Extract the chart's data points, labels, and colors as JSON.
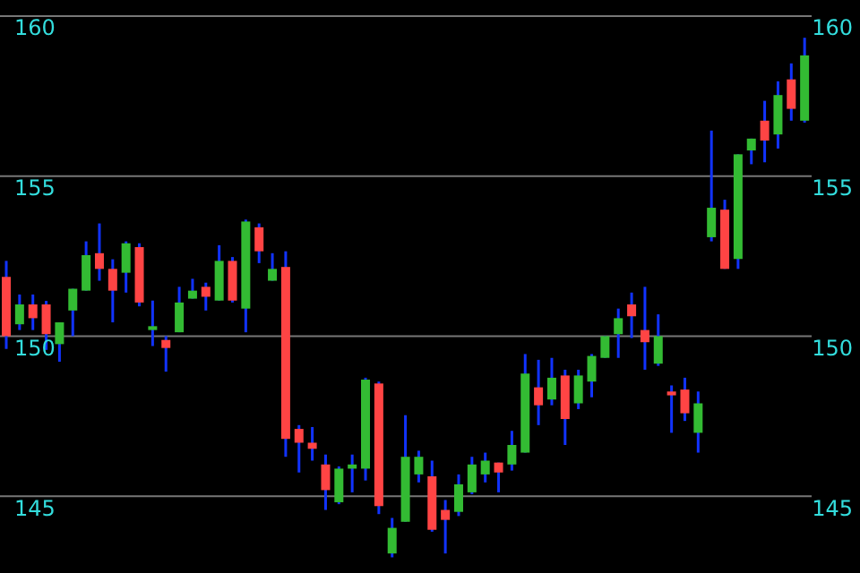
{
  "chart_data": {
    "type": "candlestick",
    "categories": [
      null,
      null,
      null,
      null,
      null,
      null,
      null,
      null,
      null,
      null,
      null,
      null,
      null,
      null,
      null,
      null,
      null,
      null,
      null,
      null,
      null,
      null,
      null,
      null,
      null,
      null,
      null,
      null,
      null,
      null,
      null,
      null,
      null,
      null,
      null,
      null,
      null,
      null,
      null,
      null,
      null,
      null,
      null,
      null,
      null,
      null,
      null,
      null,
      null,
      null,
      null,
      null,
      null,
      null,
      null,
      null,
      null,
      null,
      null,
      null,
      null
    ],
    "ohlc": [
      [
        151.85,
        152.35,
        149.6,
        150.0
      ],
      [
        150.37,
        151.3,
        150.19,
        150.99
      ],
      [
        150.99,
        151.3,
        150.19,
        150.56
      ],
      [
        150.99,
        151.1,
        149.57,
        150.06
      ],
      [
        149.75,
        150.43,
        149.2,
        150.43
      ],
      [
        150.8,
        151.48,
        150.0,
        151.48
      ],
      [
        151.42,
        152.96,
        151.42,
        152.53
      ],
      [
        152.59,
        153.52,
        151.73,
        152.1
      ],
      [
        152.1,
        152.4,
        150.43,
        151.42
      ],
      [
        151.98,
        152.96,
        151.36,
        152.9
      ],
      [
        152.78,
        152.9,
        150.93,
        151.05
      ],
      [
        150.19,
        151.11,
        149.69,
        150.31
      ],
      [
        149.88,
        150.0,
        148.89,
        149.63
      ],
      [
        150.12,
        151.54,
        150.12,
        151.05
      ],
      [
        151.17,
        151.79,
        151.17,
        151.42
      ],
      [
        151.54,
        151.67,
        150.8,
        151.23
      ],
      [
        151.11,
        152.84,
        151.11,
        152.35
      ],
      [
        152.35,
        152.47,
        151.05,
        151.11
      ],
      [
        150.86,
        153.64,
        150.12,
        153.58
      ],
      [
        153.4,
        153.52,
        152.28,
        152.65
      ],
      [
        151.73,
        152.59,
        151.73,
        152.1
      ],
      [
        152.16,
        152.65,
        146.23,
        146.79
      ],
      [
        147.1,
        147.22,
        145.74,
        146.67
      ],
      [
        146.67,
        147.16,
        146.11,
        146.48
      ],
      [
        145.99,
        146.3,
        144.57,
        145.19
      ],
      [
        144.81,
        145.93,
        144.75,
        145.86
      ],
      [
        145.86,
        146.3,
        145.12,
        145.99
      ],
      [
        145.86,
        148.7,
        145.49,
        148.64
      ],
      [
        148.52,
        148.58,
        144.44,
        144.69
      ],
      [
        143.21,
        144.32,
        143.09,
        144.01
      ],
      [
        144.2,
        147.53,
        144.2,
        146.23
      ],
      [
        145.68,
        146.42,
        145.43,
        146.23
      ],
      [
        145.62,
        146.11,
        143.89,
        143.95
      ],
      [
        144.57,
        144.88,
        143.21,
        144.26
      ],
      [
        144.51,
        145.68,
        144.38,
        145.37
      ],
      [
        145.12,
        146.23,
        145.06,
        145.99
      ],
      [
        145.68,
        146.36,
        145.43,
        146.11
      ],
      [
        146.05,
        146.05,
        145.12,
        145.74
      ],
      [
        145.99,
        147.04,
        145.8,
        146.6
      ],
      [
        146.36,
        149.44,
        146.36,
        148.83
      ],
      [
        148.4,
        149.26,
        147.22,
        147.84
      ],
      [
        148.02,
        149.32,
        147.84,
        148.7
      ],
      [
        148.77,
        148.95,
        146.6,
        147.41
      ],
      [
        147.9,
        148.95,
        147.72,
        148.77
      ],
      [
        148.58,
        149.44,
        148.09,
        149.38
      ],
      [
        149.32,
        150.0,
        149.32,
        150.0
      ],
      [
        150.06,
        150.86,
        149.32,
        150.56
      ],
      [
        150.99,
        151.36,
        149.94,
        150.62
      ],
      [
        150.19,
        151.54,
        148.95,
        149.81
      ],
      [
        149.14,
        150.68,
        149.07,
        150.0
      ],
      [
        148.27,
        148.46,
        146.98,
        148.15
      ],
      [
        148.33,
        148.7,
        147.35,
        147.59
      ],
      [
        146.98,
        148.27,
        146.36,
        147.9
      ],
      [
        153.09,
        156.42,
        152.96,
        154.01
      ],
      [
        153.95,
        154.26,
        152.1,
        152.1
      ],
      [
        152.41,
        155.68,
        152.1,
        155.68
      ],
      [
        155.8,
        156.17,
        155.37,
        156.17
      ],
      [
        156.73,
        157.35,
        155.43,
        156.11
      ],
      [
        156.3,
        157.96,
        155.86,
        157.53
      ],
      [
        158.02,
        158.52,
        156.73,
        157.1
      ],
      [
        156.73,
        159.32,
        156.67,
        158.77
      ]
    ],
    "colors": [
      "#ff4444",
      "#33bb33",
      "#ff4444",
      "#ff4444",
      "#33bb33",
      "#33bb33",
      "#33bb33",
      "#ff4444",
      "#ff4444",
      "#33bb33",
      "#ff4444",
      "#33bb33",
      "#ff4444",
      "#33bb33",
      "#33bb33",
      "#ff4444",
      "#33bb33",
      "#ff4444",
      "#33bb33",
      "#ff4444",
      "#33bb33",
      "#ff4444",
      "#ff4444",
      "#ff4444",
      "#ff4444",
      "#33bb33",
      "#33bb33",
      "#33bb33",
      "#ff4444",
      "#33bb33",
      "#33bb33",
      "#33bb33",
      "#ff4444",
      "#ff4444",
      "#33bb33",
      "#33bb33",
      "#33bb33",
      "#ff4444",
      "#33bb33",
      "#33bb33",
      "#ff4444",
      "#33bb33",
      "#ff4444",
      "#33bb33",
      "#33bb33",
      "#33bb33",
      "#33bb33",
      "#ff4444",
      "#ff4444",
      "#33bb33",
      "#ff4444",
      "#ff4444",
      "#33bb33",
      "#33bb33",
      "#ff4444",
      "#33bb33",
      "#33bb33",
      "#ff4444",
      "#33bb33",
      "#ff4444",
      "#33bb33"
    ],
    "ylim": [
      142.6,
      160.5
    ],
    "yticks": [
      145,
      150,
      155,
      160
    ],
    "y2lim": [
      142.6,
      160.5
    ],
    "y2ticks": [
      145,
      150,
      155,
      160
    ],
    "grid": "y"
  }
}
